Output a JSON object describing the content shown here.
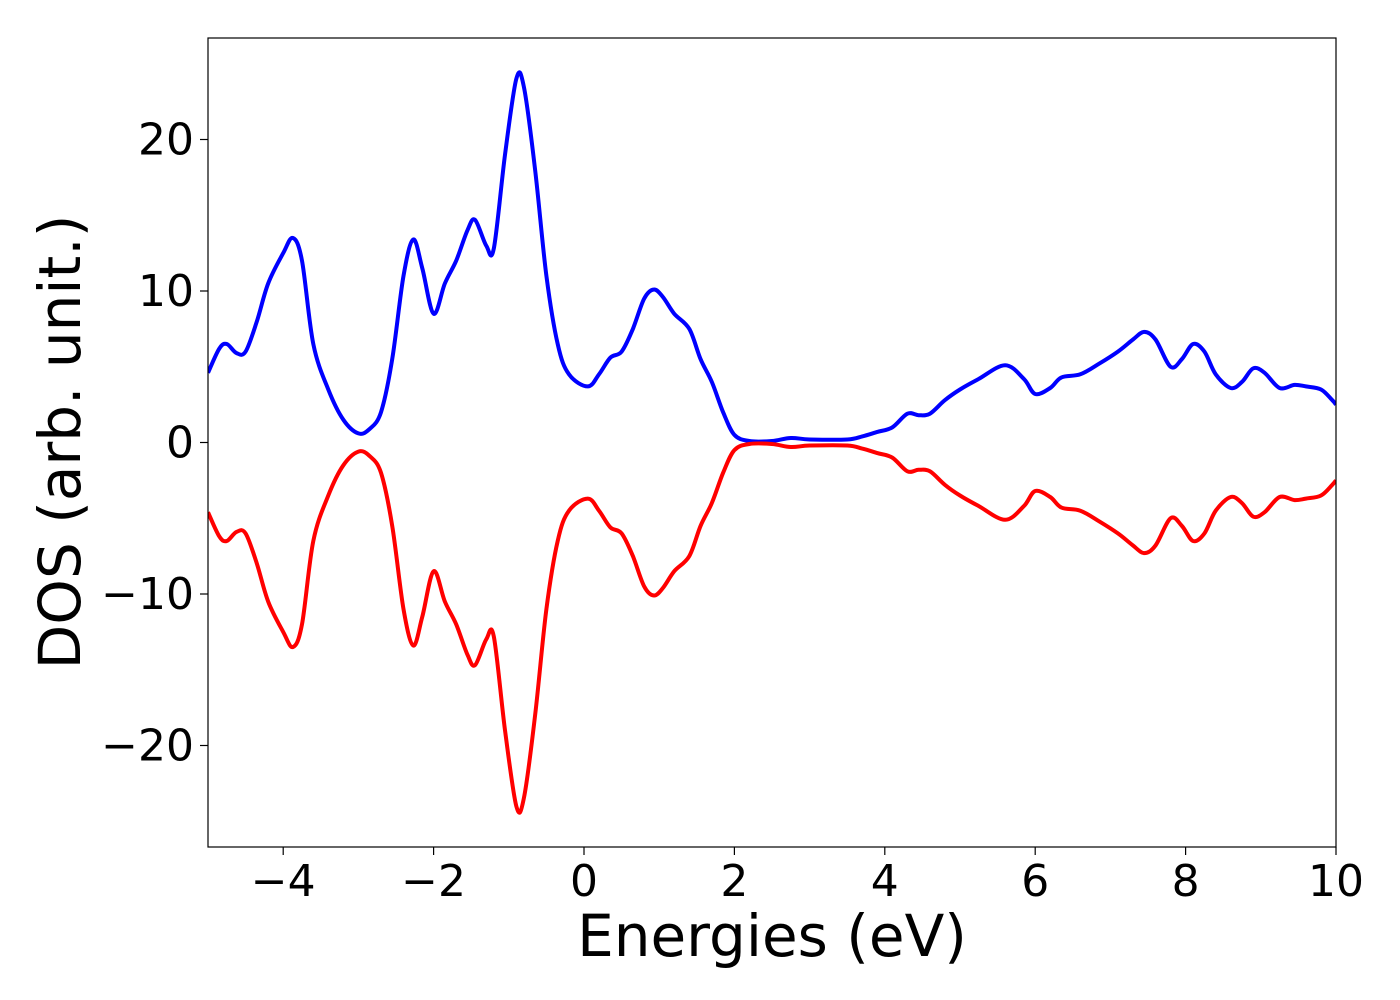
{
  "chart_data": {
    "type": "line",
    "title": "",
    "xlabel": "Energies (eV)",
    "ylabel": "DOS (arb. unit.)",
    "xlim": [
      -5,
      10
    ],
    "ylim": [
      -26.7,
      26.7
    ],
    "grid": false,
    "legend": "none",
    "x_ticks": [
      {
        "value": -4,
        "label": "−4"
      },
      {
        "value": -2,
        "label": "−2"
      },
      {
        "value": 0,
        "label": "0"
      },
      {
        "value": 2,
        "label": "2"
      },
      {
        "value": 4,
        "label": "4"
      },
      {
        "value": 6,
        "label": "6"
      },
      {
        "value": 8,
        "label": "8"
      },
      {
        "value": 10,
        "label": "10"
      }
    ],
    "y_ticks": [
      {
        "value": 20,
        "label": "20"
      },
      {
        "value": 10,
        "label": "10"
      },
      {
        "value": 0,
        "label": "0"
      },
      {
        "value": -10,
        "label": "−10"
      },
      {
        "value": -20,
        "label": "−20"
      }
    ],
    "series": [
      {
        "color": "#0000ff",
        "points": [
          [
            -5.0,
            4.6
          ],
          [
            -4.85,
            6.2
          ],
          [
            -4.75,
            6.5
          ],
          [
            -4.62,
            5.9
          ],
          [
            -4.5,
            6.0
          ],
          [
            -4.35,
            8.0
          ],
          [
            -4.2,
            10.5
          ],
          [
            -4.0,
            12.5
          ],
          [
            -3.87,
            13.5
          ],
          [
            -3.75,
            12.0
          ],
          [
            -3.6,
            6.5
          ],
          [
            -3.4,
            3.5
          ],
          [
            -3.2,
            1.5
          ],
          [
            -3.0,
            0.6
          ],
          [
            -2.85,
            0.9
          ],
          [
            -2.7,
            2.0
          ],
          [
            -2.55,
            5.5
          ],
          [
            -2.4,
            11.0
          ],
          [
            -2.27,
            13.4
          ],
          [
            -2.15,
            11.5
          ],
          [
            -2.0,
            8.5
          ],
          [
            -1.85,
            10.5
          ],
          [
            -1.7,
            12.0
          ],
          [
            -1.55,
            14.0
          ],
          [
            -1.45,
            14.7
          ],
          [
            -1.3,
            13.0
          ],
          [
            -1.2,
            12.8
          ],
          [
            -1.05,
            19.0
          ],
          [
            -0.9,
            24.0
          ],
          [
            -0.8,
            23.5
          ],
          [
            -0.65,
            18.0
          ],
          [
            -0.5,
            11.0
          ],
          [
            -0.35,
            6.5
          ],
          [
            -0.2,
            4.5
          ],
          [
            0.05,
            3.7
          ],
          [
            0.2,
            4.5
          ],
          [
            0.35,
            5.6
          ],
          [
            0.5,
            6.0
          ],
          [
            0.65,
            7.5
          ],
          [
            0.8,
            9.5
          ],
          [
            0.93,
            10.1
          ],
          [
            1.05,
            9.6
          ],
          [
            1.2,
            8.5
          ],
          [
            1.4,
            7.5
          ],
          [
            1.55,
            5.5
          ],
          [
            1.7,
            4.0
          ],
          [
            1.85,
            2.0
          ],
          [
            2.0,
            0.5
          ],
          [
            2.2,
            0.1
          ],
          [
            2.5,
            0.1
          ],
          [
            2.75,
            0.3
          ],
          [
            3.0,
            0.2
          ],
          [
            3.5,
            0.2
          ],
          [
            3.7,
            0.4
          ],
          [
            3.9,
            0.7
          ],
          [
            4.1,
            1.0
          ],
          [
            4.3,
            1.9
          ],
          [
            4.45,
            1.8
          ],
          [
            4.6,
            1.9
          ],
          [
            4.8,
            2.8
          ],
          [
            5.0,
            3.5
          ],
          [
            5.25,
            4.2
          ],
          [
            5.6,
            5.1
          ],
          [
            5.85,
            4.2
          ],
          [
            6.0,
            3.2
          ],
          [
            6.2,
            3.6
          ],
          [
            6.35,
            4.3
          ],
          [
            6.6,
            4.5
          ],
          [
            6.85,
            5.2
          ],
          [
            7.1,
            6.0
          ],
          [
            7.3,
            6.8
          ],
          [
            7.45,
            7.3
          ],
          [
            7.6,
            6.8
          ],
          [
            7.8,
            5.0
          ],
          [
            7.95,
            5.5
          ],
          [
            8.1,
            6.5
          ],
          [
            8.25,
            6.0
          ],
          [
            8.4,
            4.5
          ],
          [
            8.6,
            3.6
          ],
          [
            8.75,
            4.0
          ],
          [
            8.9,
            4.9
          ],
          [
            9.05,
            4.6
          ],
          [
            9.25,
            3.6
          ],
          [
            9.45,
            3.8
          ],
          [
            9.6,
            3.7
          ],
          [
            9.8,
            3.5
          ],
          [
            9.95,
            2.8
          ],
          [
            10.0,
            2.5
          ]
        ]
      },
      {
        "color": "#ff0000",
        "points": [
          [
            -5.0,
            -4.6
          ],
          [
            -4.85,
            -6.2
          ],
          [
            -4.75,
            -6.5
          ],
          [
            -4.62,
            -5.9
          ],
          [
            -4.5,
            -6.0
          ],
          [
            -4.35,
            -8.0
          ],
          [
            -4.2,
            -10.5
          ],
          [
            -4.0,
            -12.5
          ],
          [
            -3.87,
            -13.5
          ],
          [
            -3.75,
            -12.0
          ],
          [
            -3.6,
            -6.5
          ],
          [
            -3.4,
            -3.5
          ],
          [
            -3.2,
            -1.5
          ],
          [
            -3.0,
            -0.6
          ],
          [
            -2.85,
            -0.9
          ],
          [
            -2.7,
            -2.0
          ],
          [
            -2.55,
            -5.5
          ],
          [
            -2.4,
            -11.0
          ],
          [
            -2.27,
            -13.4
          ],
          [
            -2.15,
            -11.5
          ],
          [
            -2.0,
            -8.5
          ],
          [
            -1.85,
            -10.5
          ],
          [
            -1.7,
            -12.0
          ],
          [
            -1.55,
            -14.0
          ],
          [
            -1.45,
            -14.7
          ],
          [
            -1.3,
            -13.0
          ],
          [
            -1.2,
            -12.8
          ],
          [
            -1.05,
            -19.0
          ],
          [
            -0.9,
            -24.0
          ],
          [
            -0.8,
            -23.5
          ],
          [
            -0.65,
            -18.0
          ],
          [
            -0.5,
            -11.0
          ],
          [
            -0.35,
            -6.5
          ],
          [
            -0.2,
            -4.5
          ],
          [
            0.05,
            -3.7
          ],
          [
            0.2,
            -4.5
          ],
          [
            0.35,
            -5.6
          ],
          [
            0.5,
            -6.0
          ],
          [
            0.65,
            -7.5
          ],
          [
            0.8,
            -9.5
          ],
          [
            0.93,
            -10.1
          ],
          [
            1.05,
            -9.6
          ],
          [
            1.2,
            -8.5
          ],
          [
            1.4,
            -7.5
          ],
          [
            1.55,
            -5.5
          ],
          [
            1.7,
            -4.0
          ],
          [
            1.85,
            -2.0
          ],
          [
            2.0,
            -0.5
          ],
          [
            2.2,
            -0.1
          ],
          [
            2.5,
            -0.1
          ],
          [
            2.75,
            -0.3
          ],
          [
            3.0,
            -0.2
          ],
          [
            3.5,
            -0.2
          ],
          [
            3.7,
            -0.4
          ],
          [
            3.9,
            -0.7
          ],
          [
            4.1,
            -1.0
          ],
          [
            4.3,
            -1.9
          ],
          [
            4.45,
            -1.8
          ],
          [
            4.6,
            -1.9
          ],
          [
            4.8,
            -2.8
          ],
          [
            5.0,
            -3.5
          ],
          [
            5.25,
            -4.2
          ],
          [
            5.6,
            -5.1
          ],
          [
            5.85,
            -4.2
          ],
          [
            6.0,
            -3.2
          ],
          [
            6.2,
            -3.6
          ],
          [
            6.35,
            -4.3
          ],
          [
            6.6,
            -4.5
          ],
          [
            6.85,
            -5.2
          ],
          [
            7.1,
            -6.0
          ],
          [
            7.3,
            -6.8
          ],
          [
            7.45,
            -7.3
          ],
          [
            7.6,
            -6.8
          ],
          [
            7.8,
            -5.0
          ],
          [
            7.95,
            -5.5
          ],
          [
            8.1,
            -6.5
          ],
          [
            8.25,
            -6.0
          ],
          [
            8.4,
            -4.5
          ],
          [
            8.6,
            -3.6
          ],
          [
            8.75,
            -4.0
          ],
          [
            8.9,
            -4.9
          ],
          [
            9.05,
            -4.6
          ],
          [
            9.25,
            -3.6
          ],
          [
            9.45,
            -3.8
          ],
          [
            9.6,
            -3.7
          ],
          [
            9.8,
            -3.5
          ],
          [
            9.95,
            -2.8
          ],
          [
            10.0,
            -2.5
          ]
        ]
      }
    ]
  }
}
